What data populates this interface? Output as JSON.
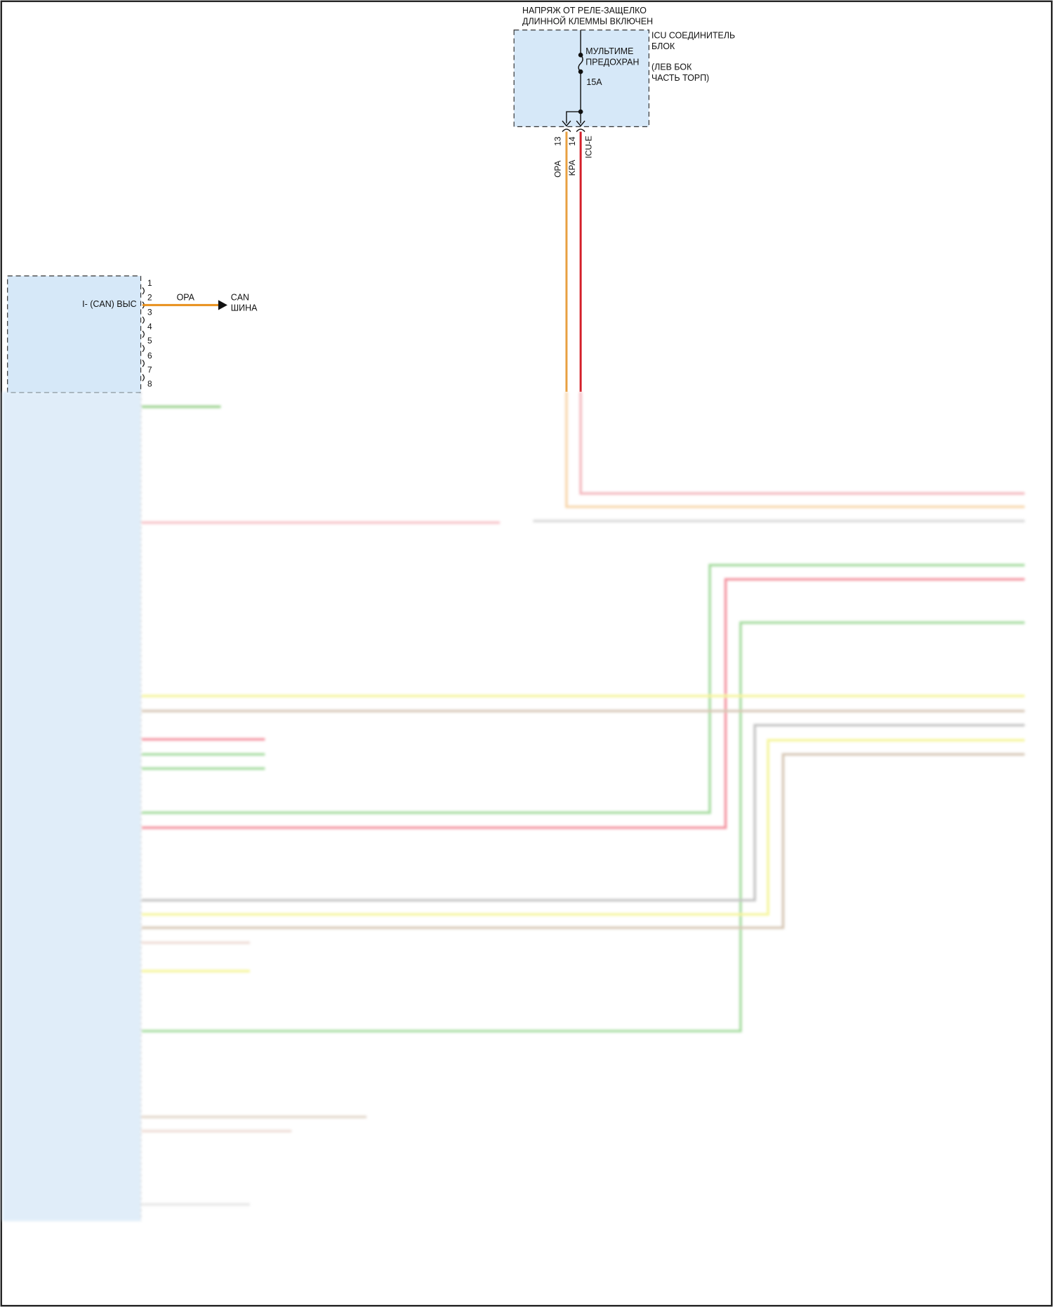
{
  "top_block": {
    "supply_label_line1": "НАПРЯЖ ОТ РЕЛЕ-ЗАЩЕЛКО",
    "supply_label_line2": "ДЛИННОЙ КЛЕММЫ ВКЛЮЧЕН",
    "block_name_line1": "ICU СОЕДИНИТЕЛЬ",
    "block_name_line2": "БЛОК",
    "location_line1": "(ЛЕВ БОК",
    "location_line2": "ЧАСТЬ ТОРП)",
    "fuse_line1": "МУЛЬТИМЕ",
    "fuse_line2": "ПРЕДОХРАН",
    "fuse_rating": "15A",
    "pins": [
      "13",
      "14"
    ],
    "wire_colors_labels": [
      "OPA",
      "KPA"
    ],
    "connector": "ICU-E"
  },
  "left_block": {
    "pins": [
      "1",
      "2",
      "3",
      "4",
      "5",
      "6",
      "7",
      "8"
    ],
    "pin2_label": "I- (CAN) ВЫС",
    "pin2_wire": "OPA",
    "pin2_dest_line1": "CAN",
    "pin2_dest_line2": "ШИНА"
  },
  "colors": {
    "block_fill": "#d6e8f8",
    "orange": "#e8901c",
    "red": "#d4202a",
    "green": "#7cc46a",
    "yellow": "#f2f27a",
    "tan": "#c8b49c",
    "gray": "#b0b0b0",
    "pink": "#f0a0a8"
  }
}
